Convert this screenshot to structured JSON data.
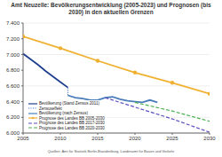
{
  "chart_data": {
    "type": "line",
    "title": "Amt Neuzelle: Bevölkerungsentwicklung (2005-2023) und Prognosen (bis 2030) in den aktuellen Grenzen",
    "source": "Quellen: Amt für Statistik Berlin-Brandenburg, Landesamt für Bauen und Verkehr",
    "xlim": [
      2005,
      2030
    ],
    "xticks": [
      2005,
      2010,
      2015,
      2020,
      2025,
      2030
    ],
    "ylim": [
      6000,
      7400
    ],
    "yticks": [
      {
        "value": 6000,
        "label": "6.000"
      },
      {
        "value": 6200,
        "label": "6.200"
      },
      {
        "value": 6400,
        "label": "6.400"
      },
      {
        "value": 6600,
        "label": "6.600"
      },
      {
        "value": 6800,
        "label": "6.800"
      },
      {
        "value": 7000,
        "label": "7.000"
      },
      {
        "value": 7200,
        "label": "7.200"
      },
      {
        "value": 7400,
        "label": "7.400"
      }
    ],
    "grid": true,
    "legend": "lower left",
    "series": [
      {
        "name": "Bevölkerung (Stand Zensus 2011)",
        "color": "#1f3f8f",
        "line_style": "solid",
        "x": [
          2005,
          2006,
          2007,
          2008,
          2009,
          2010,
          2011
        ],
        "values": [
          7010,
          6940,
          6870,
          6790,
          6720,
          6650,
          6580
        ]
      },
      {
        "name": "Zensuseffekt",
        "color": "#3b6ccf",
        "line_style": "dotted",
        "x": [
          2011,
          2011
        ],
        "values": [
          6580,
          6480
        ]
      },
      {
        "name": "Bevölkerung (nach Zensus)",
        "color": "#4a7ebb",
        "line_style": "solid",
        "x": [
          2011,
          2012,
          2013,
          2014,
          2015,
          2016,
          2017,
          2018,
          2019,
          2020,
          2021,
          2022,
          2023
        ],
        "values": [
          6480,
          6450,
          6440,
          6420,
          6420,
          6450,
          6460,
          6430,
          6410,
          6400,
          6390,
          6420,
          6390
        ]
      },
      {
        "name": "Prognose des Landes BB 2005-2030",
        "color": "#f0b030",
        "line_style": "solid",
        "marker": "circle",
        "x": [
          2005,
          2010,
          2015,
          2020,
          2025,
          2030
        ],
        "values": [
          7230,
          7080,
          6920,
          6770,
          6640,
          6500
        ]
      },
      {
        "name": "Prognose des Landes BB 2017-2030",
        "color": "#5a4fbf",
        "line_style": "dashed",
        "x": [
          2016,
          2020,
          2025,
          2030
        ],
        "values": [
          6450,
          6330,
          6180,
          6010
        ]
      },
      {
        "name": "Prognose des Landes BB 2020-2030",
        "color": "#4caf50",
        "line_style": "dashed",
        "x": [
          2020,
          2025,
          2030
        ],
        "values": [
          6390,
          6280,
          6150
        ]
      }
    ]
  }
}
